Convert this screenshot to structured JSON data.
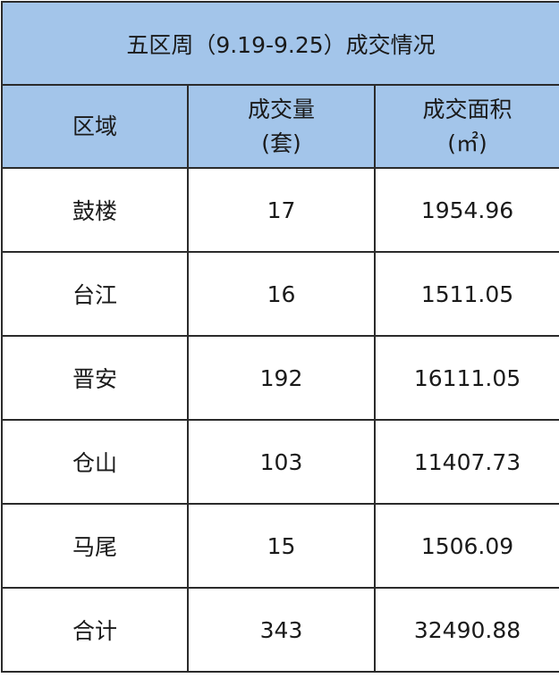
{
  "title": "五区周（9.19-9.25）成交情况",
  "header_bg": "#a3c5ea",
  "headers": [
    {
      "line1": "区域",
      "line2": ""
    },
    {
      "line1": "成交量",
      "line2": "(套)"
    },
    {
      "line1": "成交面积",
      "line2": "(㎡)"
    }
  ],
  "rows": [
    {
      "district": "鼓楼",
      "units": "17",
      "area": "1954.96"
    },
    {
      "district": "台江",
      "units": "16",
      "area": "1511.05"
    },
    {
      "district": "晋安",
      "units": "192",
      "area": "16111.05"
    },
    {
      "district": "仓山",
      "units": "103",
      "area": "11407.73"
    },
    {
      "district": "马尾",
      "units": "15",
      "area": "1506.09"
    },
    {
      "district": "合计",
      "units": "343",
      "area": "32490.88"
    }
  ]
}
